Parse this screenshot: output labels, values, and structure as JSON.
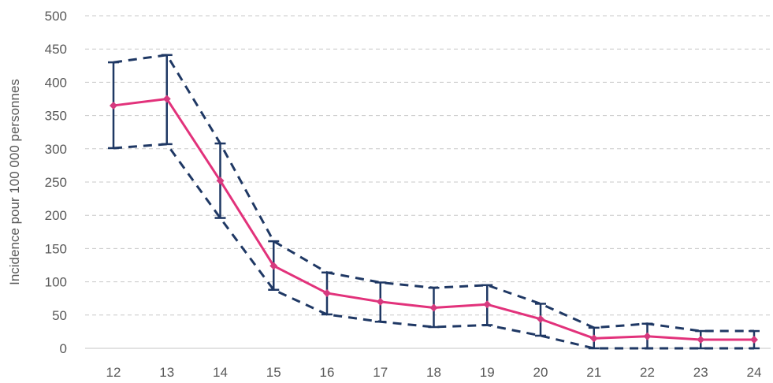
{
  "chart_data": {
    "type": "line",
    "title": "",
    "xlabel": "",
    "ylabel": "Incidence pour 100 000  personnes",
    "categories": [
      "12",
      "13",
      "14",
      "15",
      "16",
      "17",
      "18",
      "19",
      "20",
      "21",
      "22",
      "23",
      "24"
    ],
    "ylim": [
      0,
      500
    ],
    "yticks": [
      0,
      50,
      100,
      150,
      200,
      250,
      300,
      350,
      400,
      450,
      500
    ],
    "grid": true,
    "series": [
      {
        "values": [
          365,
          375,
          252,
          124,
          83,
          70,
          61,
          66,
          44,
          15,
          18,
          13,
          13
        ]
      }
    ],
    "bounds": {
      "upper": [
        430,
        441,
        308,
        161,
        114,
        99,
        91,
        95,
        67,
        31,
        37,
        26,
        26
      ],
      "lower": [
        301,
        307,
        196,
        88,
        51,
        40,
        32,
        35,
        19,
        0,
        0,
        0,
        0
      ]
    },
    "colors": {
      "line": "#e2327b",
      "marker": "#d63a7f",
      "interval": "#1f3864",
      "grid": "#c8c8c8",
      "axis": "#d9d9d9",
      "text": "#595959"
    }
  }
}
